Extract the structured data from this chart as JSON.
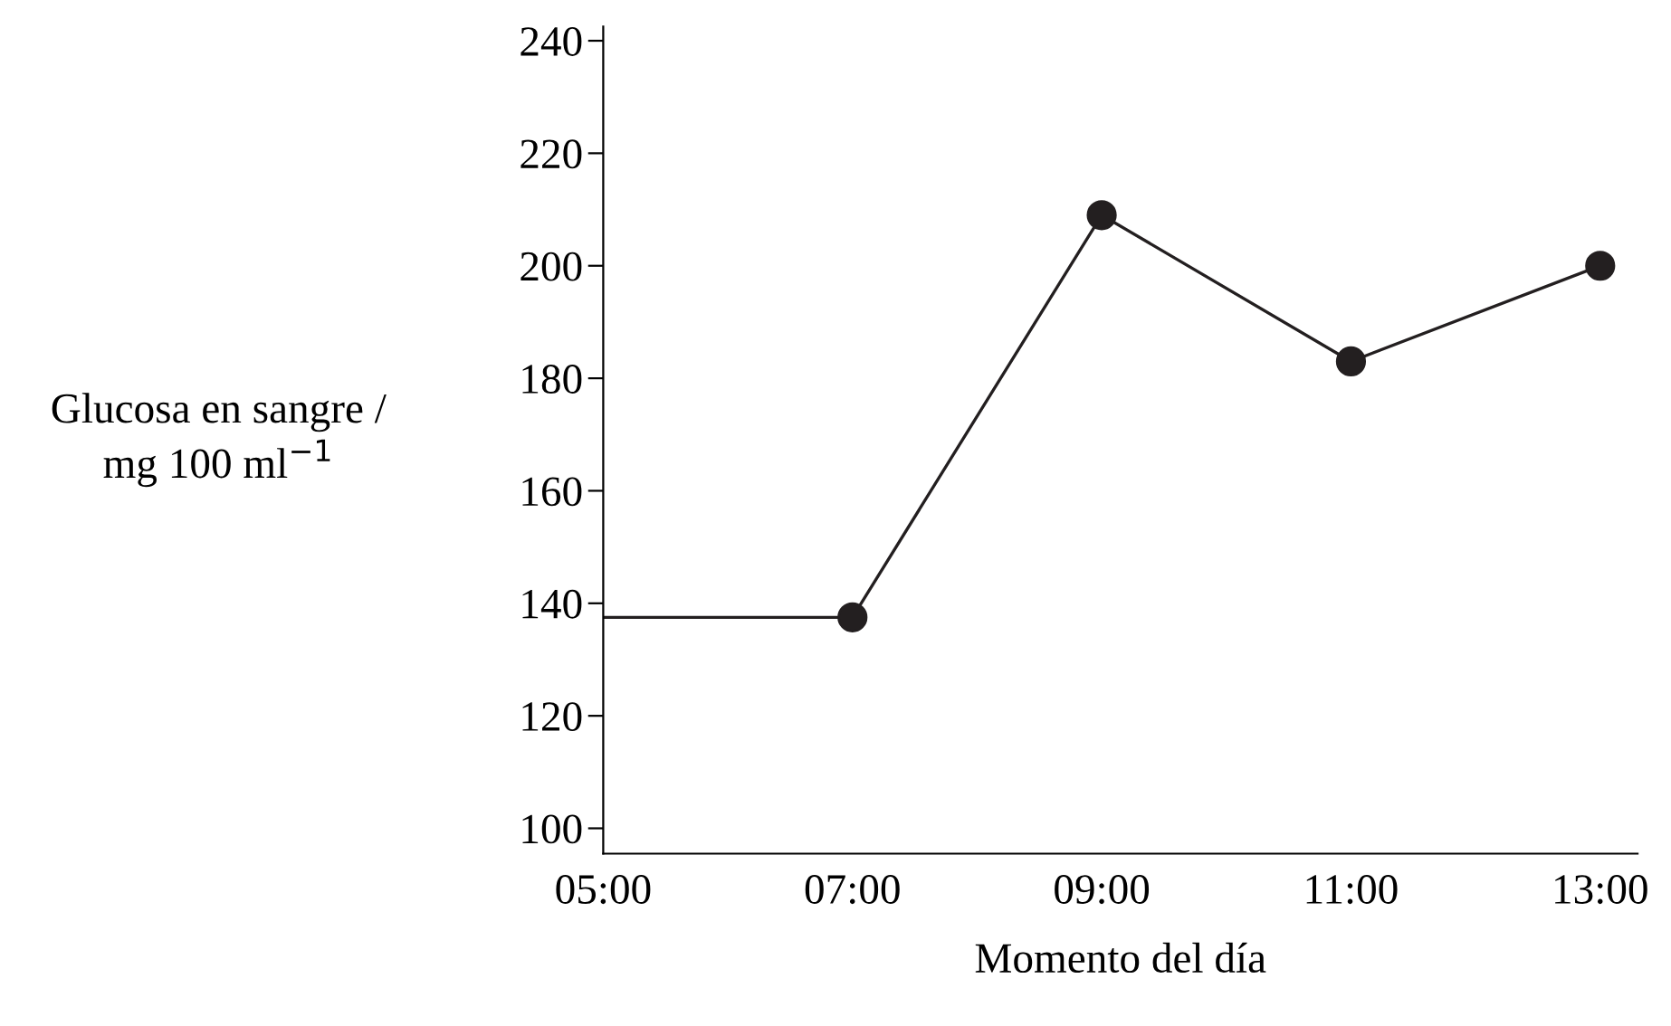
{
  "chart_data": {
    "type": "line",
    "xlabel": "Momento del día",
    "ylabel": "Glucosa en sangre /\nmg 100 ml$^{−1}$",
    "xlim": [
      5,
      13.3
    ],
    "xticks": [
      {
        "value": 5,
        "label": "05:00"
      },
      {
        "value": 7,
        "label": "07:00"
      },
      {
        "value": 9,
        "label": "09:00"
      },
      {
        "value": 11,
        "label": "11:00"
      },
      {
        "value": 13,
        "label": "13:00"
      }
    ],
    "ylim": [
      95.5,
      242.5
    ],
    "yticks": [
      100,
      120,
      140,
      160,
      180,
      200,
      220,
      240
    ],
    "grid": false,
    "legend": false,
    "series": [
      {
        "color": "#231f20",
        "marker": "none",
        "line_style": "solid",
        "x": [
          5,
          7,
          9,
          11,
          13
        ],
        "values": [
          137.5,
          137.5,
          209,
          183,
          200
        ]
      },
      {
        "type": "scatter",
        "color": "#231f20",
        "marker": "circle",
        "x": [
          7,
          9,
          11,
          13
        ],
        "values": [
          137.5,
          209,
          183,
          200
        ]
      }
    ]
  }
}
